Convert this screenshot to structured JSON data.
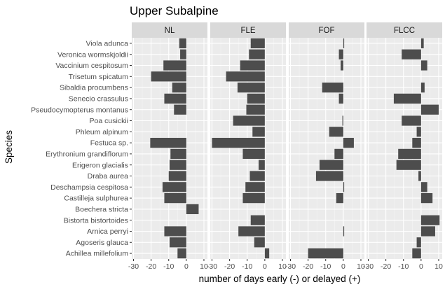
{
  "chart_data": {
    "type": "bar",
    "orientation": "horizontal",
    "title": "Upper Subalpine",
    "xlabel": "number of days early (-) or delayed (+)",
    "ylabel": "Species",
    "xlim": [
      -31,
      12
    ],
    "xticks": [
      -30,
      -20,
      -10,
      0,
      10
    ],
    "xtick_labels": [
      "-30",
      "-20",
      "-10",
      "0",
      "10"
    ],
    "grid": true,
    "panels": [
      "NL",
      "FLE",
      "FOF",
      "FLCC"
    ],
    "categories": [
      "Viola adunca",
      "Veronica wormskjoldii",
      "Vaccinium cespitosum",
      "Trisetum spicatum",
      "Sibaldia procumbens",
      "Senecio crassulus",
      "Pseudocymopterus montanus",
      "Poa cusickii",
      "Phleum alpinum",
      "Festuca sp.",
      "Erythronium grandiflorum",
      "Erigeron glacialis",
      "Draba aurea",
      "Deschampsia cespitosa",
      "Castilleja sulphurea",
      "Boechera stricta",
      "Bistorta bistortoides",
      "Arnica perryi",
      "Agoseris glauca",
      "Achillea millefolium"
    ],
    "series": [
      {
        "panel": "NL",
        "values": [
          -4,
          -3.5,
          -13,
          -20,
          -8,
          -12.5,
          -7,
          null,
          null,
          -20.5,
          -9,
          -9.5,
          -10,
          -13.5,
          -12.5,
          7,
          null,
          -12.5,
          -9.5,
          -5
        ]
      },
      {
        "panel": "FLE",
        "values": [
          -8,
          -9,
          -14,
          -22,
          -15.5,
          -10,
          -10.5,
          -18,
          -7,
          -30,
          -12.5,
          -3.5,
          -8.5,
          -11,
          -12.5,
          null,
          -8,
          -15,
          -6,
          2.5
        ]
      },
      {
        "panel": "FOF",
        "values": [
          0.5,
          -2.5,
          -1.5,
          null,
          -12,
          -2.5,
          null,
          -0.5,
          -8,
          6,
          -5,
          -13.5,
          -15.5,
          0.5,
          -4,
          null,
          null,
          0.5,
          null,
          -20
        ]
      },
      {
        "panel": "FLCC",
        "values": [
          1.5,
          -11,
          3.5,
          null,
          2,
          -15.5,
          10,
          -11,
          -2.5,
          -5,
          -13,
          -14,
          -1.5,
          3.5,
          6.5,
          null,
          10.5,
          8,
          -2.5,
          -5
        ]
      }
    ]
  }
}
